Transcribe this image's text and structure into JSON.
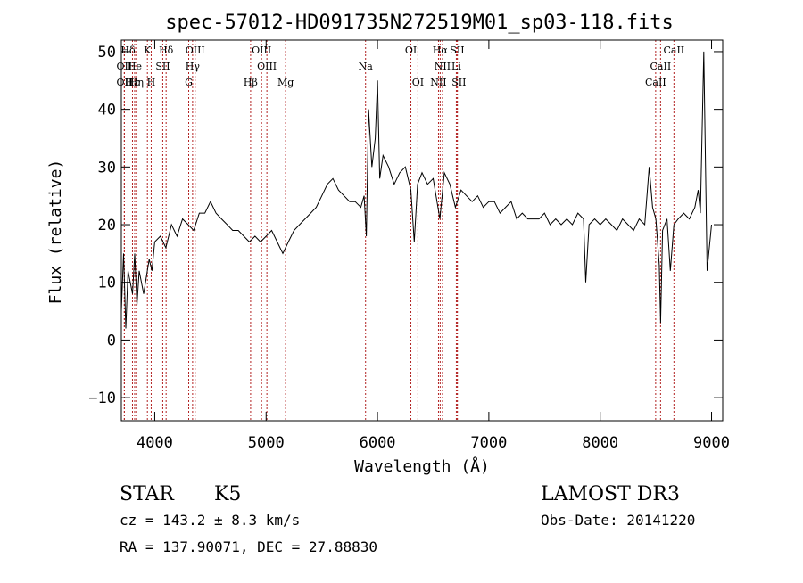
{
  "chart_data": {
    "type": "line",
    "title": "spec-57012-HD091735N272519M01_sp03-118.fits",
    "xlabel": "Wavelength (Å)",
    "ylabel": "Flux (relative)",
    "xlim": [
      3700,
      9100
    ],
    "ylim": [
      -14,
      52
    ],
    "xticks": [
      4000,
      5000,
      6000,
      7000,
      8000,
      9000
    ],
    "yticks": [
      -10,
      0,
      10,
      20,
      30,
      40,
      50
    ],
    "grid": false,
    "line_color": "#000000",
    "marker_color": "#b22222",
    "series": [
      {
        "x": [
          3700,
          3720,
          3740,
          3760,
          3780,
          3800,
          3820,
          3840,
          3860,
          3880,
          3900,
          3925,
          3950,
          3975,
          4000,
          4050,
          4100,
          4150,
          4200,
          4250,
          4300,
          4350,
          4400,
          4450,
          4500,
          4550,
          4600,
          4650,
          4700,
          4750,
          4800,
          4850,
          4900,
          4950,
          5000,
          5050,
          5100,
          5150,
          5200,
          5250,
          5300,
          5350,
          5400,
          5450,
          5500,
          5550,
          5600,
          5650,
          5700,
          5750,
          5800,
          5850,
          5880,
          5900,
          5920,
          5950,
          5980,
          6000,
          6020,
          6050,
          6100,
          6150,
          6200,
          6250,
          6300,
          6330,
          6360,
          6400,
          6450,
          6500,
          6560,
          6600,
          6650,
          6700,
          6750,
          6800,
          6850,
          6900,
          6950,
          7000,
          7050,
          7100,
          7150,
          7200,
          7250,
          7300,
          7350,
          7400,
          7450,
          7500,
          7550,
          7600,
          7650,
          7700,
          7750,
          7800,
          7850,
          7870,
          7900,
          7950,
          8000,
          8050,
          8100,
          8150,
          8200,
          8250,
          8300,
          8350,
          8400,
          8440,
          8470,
          8500,
          8530,
          8542,
          8560,
          8600,
          8630,
          8662,
          8700,
          8750,
          8800,
          8850,
          8880,
          8900,
          8930,
          8960,
          9000
        ],
        "y": [
          5,
          15,
          2,
          12,
          10,
          8,
          15,
          6,
          12,
          10,
          8,
          11,
          14,
          12,
          17,
          18,
          16,
          20,
          18,
          21,
          20,
          19,
          22,
          22,
          24,
          22,
          21,
          20,
          19,
          19,
          18,
          17,
          18,
          17,
          18,
          19,
          17,
          15,
          17,
          19,
          20,
          21,
          22,
          23,
          25,
          27,
          28,
          26,
          25,
          24,
          24,
          23,
          25,
          18,
          40,
          30,
          35,
          45,
          28,
          32,
          30,
          27,
          29,
          30,
          26,
          17,
          27,
          29,
          27,
          28,
          21,
          29,
          27,
          23,
          26,
          25,
          24,
          25,
          23,
          24,
          24,
          22,
          23,
          24,
          21,
          22,
          21,
          21,
          21,
          22,
          20,
          21,
          20,
          21,
          20,
          22,
          21,
          10,
          20,
          21,
          20,
          21,
          20,
          19,
          21,
          20,
          19,
          21,
          20,
          30,
          23,
          21,
          13,
          3,
          19,
          21,
          12,
          20,
          21,
          22,
          21,
          23,
          26,
          22,
          50,
          12,
          20
        ]
      }
    ],
    "spectral_lines": [
      {
        "label": "Hδ",
        "x": 3760,
        "row": 0
      },
      {
        "label": "K",
        "x": 3934,
        "row": 0
      },
      {
        "label": "Hδ",
        "x": 4102,
        "row": 0
      },
      {
        "label": "OIII",
        "x": 4363,
        "row": 0
      },
      {
        "label": "OIII",
        "x": 4959,
        "row": 0
      },
      {
        "label": "OI",
        "x": 6300,
        "row": 0
      },
      {
        "label": "Hα",
        "x": 6563,
        "row": 0
      },
      {
        "label": "SII",
        "x": 6716,
        "row": 0
      },
      {
        "label": "CaII",
        "x": 8662,
        "row": 0
      },
      {
        "label": "OII",
        "x": 3727,
        "row": 1
      },
      {
        "label": "He",
        "x": 3820,
        "row": 1
      },
      {
        "label": "SII",
        "x": 4072,
        "row": 1
      },
      {
        "label": "Hγ",
        "x": 4340,
        "row": 1
      },
      {
        "label": "OIII",
        "x": 5007,
        "row": 1
      },
      {
        "label": "Na",
        "x": 5893,
        "row": 1
      },
      {
        "label": "NII",
        "x": 6584,
        "row": 1
      },
      {
        "label": "Li",
        "x": 6708,
        "row": 1
      },
      {
        "label": "CaII",
        "x": 8542,
        "row": 1
      },
      {
        "label": "OII",
        "x": 3727,
        "row": 2
      },
      {
        "label": "Hε",
        "x": 3800,
        "row": 2
      },
      {
        "label": "Hη",
        "x": 3835,
        "row": 2
      },
      {
        "label": "H",
        "x": 3968,
        "row": 2
      },
      {
        "label": "G",
        "x": 4305,
        "row": 2
      },
      {
        "label": "Hβ",
        "x": 4861,
        "row": 2
      },
      {
        "label": "Mg",
        "x": 5175,
        "row": 2
      },
      {
        "label": "OI",
        "x": 6363,
        "row": 2
      },
      {
        "label": "NII",
        "x": 6548,
        "row": 2
      },
      {
        "label": "SII",
        "x": 6731,
        "row": 2
      },
      {
        "label": "CaII",
        "x": 8498,
        "row": 2
      }
    ]
  },
  "info": {
    "object_class": "STAR",
    "subclass": "K5",
    "redshift": "cz = 143.2 ± 8.3 km/s",
    "coords": "RA = 137.90071, DEC =  27.88830",
    "survey": "LAMOST DR3",
    "obs_date": "Obs-Date: 20141220"
  }
}
